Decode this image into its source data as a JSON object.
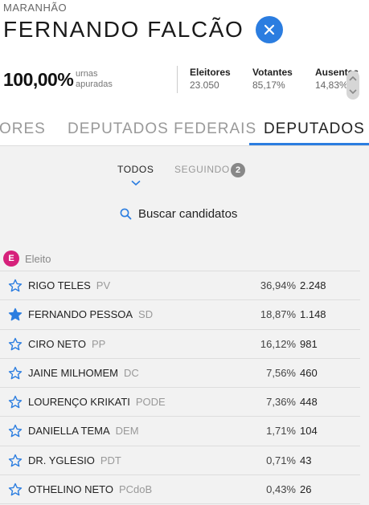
{
  "header": {
    "state": "MARANHÃO",
    "city": "FERNANDO FALCÃO"
  },
  "stats": {
    "percent": "100,00%",
    "percent_label_1": "urnas",
    "percent_label_2": "apuradas",
    "eleitores_label": "Eleitores",
    "eleitores_value": "23.050",
    "votantes_label": "Votantes",
    "votantes_value": "85,17%",
    "ausentes_label": "Ausentes",
    "ausentes_value": "14,83%"
  },
  "tabs": [
    {
      "label": "ORES",
      "active": false
    },
    {
      "label": "DEPUTADOS FEDERAIS",
      "active": false
    },
    {
      "label": "DEPUTADOS E",
      "active": true
    }
  ],
  "filters": {
    "todos": "TODOS",
    "seguindo": "SEGUINDO",
    "seguindo_count": "2"
  },
  "search": {
    "label": "Buscar candidatos"
  },
  "legend": {
    "badge": "E",
    "label": "Eleito"
  },
  "colors": {
    "accent": "#2b7de0",
    "elected": "#d6217b"
  },
  "candidates": [
    {
      "name": "RIGO TELES",
      "party": "PV",
      "pct": "36,94%",
      "votes": "2.248",
      "followed": false
    },
    {
      "name": "FERNANDO PESSOA",
      "party": "SD",
      "pct": "18,87%",
      "votes": "1.148",
      "followed": true
    },
    {
      "name": "CIRO NETO",
      "party": "PP",
      "pct": "16,12%",
      "votes": "981",
      "followed": false
    },
    {
      "name": "JAINE MILHOMEM",
      "party": "DC",
      "pct": "7,56%",
      "votes": "460",
      "followed": false
    },
    {
      "name": "LOURENÇO KRIKATI",
      "party": "PODE",
      "pct": "7,36%",
      "votes": "448",
      "followed": false
    },
    {
      "name": "DANIELLA TEMA",
      "party": "DEM",
      "pct": "1,71%",
      "votes": "104",
      "followed": false
    },
    {
      "name": "DR. YGLESIO",
      "party": "PDT",
      "pct": "0,71%",
      "votes": "43",
      "followed": false
    },
    {
      "name": "OTHELINO NETO",
      "party": "PCdoB",
      "pct": "0,43%",
      "votes": "26",
      "followed": false
    }
  ]
}
